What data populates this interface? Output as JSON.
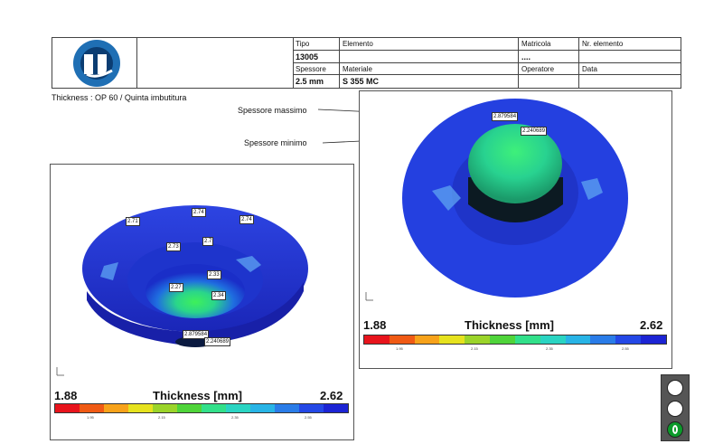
{
  "header": {
    "tipo_label": "Tipo",
    "tipo_value": "13005",
    "elemento_label": "Elemento",
    "elemento_value": "",
    "matricola_label": "Matricola",
    "matricola_value": "....",
    "nr_elemento_label": "Nr. elemento",
    "spessore_label": "Spessore",
    "spessore_value": "2.5 mm",
    "materiale_label": "Materiale",
    "materiale_value": "S 355 MC",
    "operatore_label": "Operatore",
    "data_label": "Data"
  },
  "page_title": "Thickness : OP 60 / Quinta  imbutitura",
  "annotations": {
    "max_label": "Spessore massimo",
    "min_label": "Spessore minimo"
  },
  "left_view": {
    "labels": [
      "2.71",
      "2.74",
      "2.74",
      "2.73",
      "2.7",
      "2.33",
      "2.27",
      "2.34"
    ],
    "max_value": "2.879584",
    "min_value": "2.240689"
  },
  "right_view": {
    "max_value": "2.879584",
    "min_value": "2.240689"
  },
  "legend": {
    "min": "1.88",
    "max": "2.62",
    "title": "Thickness [mm]",
    "ticks": [
      "1.95",
      "2.15",
      "2.35",
      "2.55"
    ],
    "colors": [
      "#e8141c",
      "#f05a14",
      "#f7a21a",
      "#e6e21e",
      "#9bd42a",
      "#4fd43a",
      "#32e08a",
      "#2ad4c2",
      "#28b4e6",
      "#2a7ce8",
      "#2448e6",
      "#1c24d4"
    ]
  },
  "traffic_light": {
    "active": "green"
  }
}
